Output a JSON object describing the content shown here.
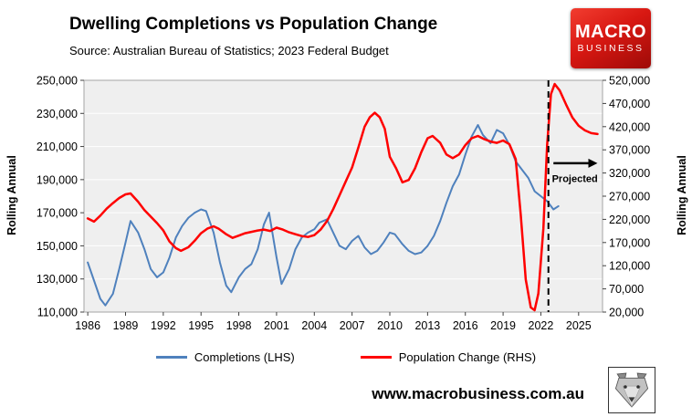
{
  "header": {
    "title": "Dwelling Completions vs Population Change",
    "subtitle": "Source: Australian Bureau of Statistics; 2023 Federal Budget"
  },
  "logo": {
    "line1": "MACRO",
    "line2": "BUSINESS"
  },
  "footer": {
    "website": "www.macrobusiness.com.au"
  },
  "chart_data": {
    "type": "line",
    "title": "Dwelling Completions vs Population Change",
    "x_axis": {
      "min": 1985.7,
      "max": 2026.9,
      "ticks": [
        1986,
        1989,
        1992,
        1995,
        1998,
        2001,
        2004,
        2007,
        2010,
        2013,
        2016,
        2019,
        2022,
        2025
      ]
    },
    "left_axis": {
      "label": "Rolling Annual",
      "min": 110000,
      "max": 250000,
      "ticks": [
        110000,
        130000,
        150000,
        170000,
        190000,
        210000,
        230000,
        250000
      ]
    },
    "right_axis": {
      "label": "Rolling Annual",
      "min": 20000,
      "max": 520000,
      "ticks": [
        20000,
        70000,
        120000,
        170000,
        220000,
        270000,
        320000,
        370000,
        420000,
        470000,
        520000
      ]
    },
    "grid": "horizontal-white-on-gray",
    "legend_position": "bottom",
    "annotation": {
      "label": "Projected",
      "line_x": 2022.6,
      "arrow_from_x": 2023.0,
      "arrow_to_x": 2026.5,
      "arrow_value_rhs": 341000,
      "label_x": 2024.7,
      "label_value_rhs": 308000
    },
    "legend": [
      {
        "label": "Completions (LHS)",
        "color": "#4F81BD"
      },
      {
        "label": "Population Change (RHS)",
        "color": "#FF0000"
      }
    ],
    "series": [
      {
        "name": "Completions (LHS)",
        "axis": "left",
        "color": "#4F81BD",
        "width": 2,
        "x": [
          1986,
          1986.5,
          1987,
          1987.4,
          1988,
          1988.5,
          1989,
          1989.4,
          1990,
          1990.5,
          1991,
          1991.5,
          1992,
          1992.5,
          1993,
          1993.5,
          1994,
          1994.5,
          1995,
          1995.4,
          1996,
          1996.5,
          1997,
          1997.4,
          1998,
          1998.5,
          1999,
          1999.5,
          2000,
          2000.4,
          2001,
          2001.4,
          2002,
          2002.5,
          2003,
          2003.5,
          2004,
          2004.4,
          2005,
          2005.5,
          2006,
          2006.5,
          2007,
          2007.5,
          2008,
          2008.5,
          2009,
          2009.5,
          2010,
          2010.4,
          2011,
          2011.5,
          2012,
          2012.5,
          2013,
          2013.5,
          2014,
          2014.5,
          2015,
          2015.5,
          2016,
          2016.5,
          2017,
          2017.4,
          2018,
          2018.5,
          2019,
          2019.5,
          2020,
          2020.5,
          2021,
          2021.5,
          2022,
          2022.5,
          2023,
          2023.4
        ],
        "values": [
          140000,
          129000,
          118000,
          114000,
          121000,
          136000,
          152000,
          165000,
          158000,
          148000,
          136000,
          131000,
          134000,
          143000,
          155000,
          162000,
          167000,
          170000,
          172000,
          171000,
          158000,
          140000,
          126000,
          122000,
          131000,
          136000,
          139000,
          148000,
          163000,
          170000,
          143000,
          127000,
          136000,
          148000,
          155000,
          158000,
          160000,
          164000,
          166000,
          158000,
          150000,
          148000,
          153000,
          156000,
          149000,
          145000,
          147000,
          152000,
          158000,
          157000,
          151000,
          147000,
          145000,
          146000,
          150000,
          156000,
          165000,
          176000,
          186000,
          193000,
          205000,
          216000,
          223000,
          217000,
          212000,
          220000,
          218000,
          211000,
          201000,
          196000,
          191000,
          183000,
          180000,
          177000,
          172000,
          174000
        ]
      },
      {
        "name": "Population Change (RHS)",
        "axis": "right",
        "color": "#FF0000",
        "width": 2.5,
        "x": [
          1986,
          1986.5,
          1987,
          1987.5,
          1988,
          1988.5,
          1989,
          1989.4,
          1990,
          1990.5,
          1991,
          1991.5,
          1992,
          1992.5,
          1993,
          1993.4,
          1994,
          1994.5,
          1995,
          1995.5,
          1996,
          1996.4,
          1997,
          1997.5,
          1998,
          1998.5,
          1999,
          1999.5,
          2000,
          2000.5,
          2001,
          2001.5,
          2002,
          2002.5,
          2003,
          2003.5,
          2004,
          2004.5,
          2005,
          2005.5,
          2006,
          2006.5,
          2007,
          2007.5,
          2008,
          2008.4,
          2008.8,
          2009.2,
          2009.6,
          2010,
          2010.5,
          2011,
          2011.5,
          2012,
          2012.5,
          2013,
          2013.4,
          2014,
          2014.5,
          2015,
          2015.5,
          2016,
          2016.5,
          2017,
          2017.5,
          2018,
          2018.5,
          2019,
          2019.5,
          2020,
          2020.4,
          2020.8,
          2021.2,
          2021.5,
          2021.8,
          2022.2,
          2022.5,
          2022.8,
          2023.1,
          2023.5,
          2024,
          2024.5,
          2025,
          2025.5,
          2026,
          2026.5
        ],
        "values": [
          222000,
          215000,
          228000,
          243000,
          255000,
          266000,
          274000,
          276000,
          258000,
          240000,
          226000,
          212000,
          196000,
          172000,
          158000,
          152000,
          160000,
          174000,
          190000,
          200000,
          205000,
          200000,
          188000,
          180000,
          185000,
          190000,
          193000,
          196000,
          198000,
          195000,
          202000,
          198000,
          192000,
          188000,
          184000,
          182000,
          186000,
          198000,
          216000,
          242000,
          272000,
          302000,
          332000,
          375000,
          420000,
          440000,
          450000,
          440000,
          415000,
          355000,
          330000,
          300000,
          305000,
          330000,
          365000,
          395000,
          400000,
          385000,
          360000,
          352000,
          360000,
          380000,
          395000,
          400000,
          393000,
          388000,
          385000,
          390000,
          382000,
          350000,
          230000,
          90000,
          30000,
          24000,
          60000,
          200000,
          380000,
          490000,
          512000,
          498000,
          468000,
          440000,
          422000,
          412000,
          406000,
          404000
        ]
      }
    ]
  }
}
